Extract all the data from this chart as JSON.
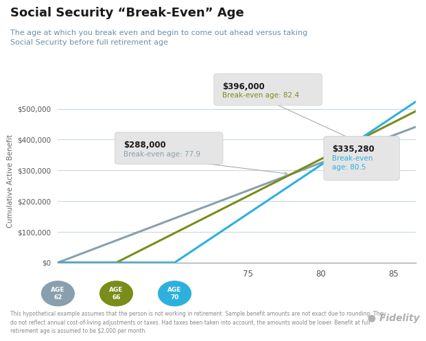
{
  "title": "Social Security “Break-Even” Age",
  "subtitle": "The age at which you break even and begin to come out ahead versus taking\nSocial Security before full retirement age",
  "footnote": "This hypothetical example assumes that the person is not working in retirement. Sample benefit amounts are not exact due to rounding. They\ndo not reflect annual cost-of-living adjustments or taxes. Had taxes been taken into account, the amounts would be lower. Benefit at full\nretirement age is assumed to be $2,000 per month.",
  "ylabel": "Cumulative Active Benefit",
  "lines": [
    {
      "start_age": 62,
      "monthly": 1500,
      "color": "#8a9fad",
      "label": "AGE\n62",
      "circle_color": "#8a9fad"
    },
    {
      "start_age": 66,
      "monthly": 2000,
      "color": "#7a8c1a",
      "label": "AGE\n66",
      "circle_color": "#7a8c1a"
    },
    {
      "start_age": 70,
      "monthly": 2640,
      "color": "#2db0de",
      "label": "AGE\n70",
      "circle_color": "#2db0de"
    }
  ],
  "circle_configs": [
    {
      "age": 62,
      "color": "#8a9fad",
      "text": "AGE\n62"
    },
    {
      "age": 66,
      "color": "#7a8c1a",
      "text": "AGE\n66"
    },
    {
      "age": 70,
      "color": "#2db0de",
      "text": "AGE\n70"
    }
  ],
  "xlim": [
    62,
    86.5
  ],
  "ylim": [
    0,
    530000
  ],
  "yticks": [
    0,
    100000,
    200000,
    300000,
    400000,
    500000
  ],
  "ytick_labels": [
    "$0",
    "$100,000",
    "$200,000",
    "$300,000",
    "$400,000",
    "$500,000"
  ],
  "xticks": [
    75,
    80,
    85
  ],
  "bg_color": "#ffffff",
  "title_color": "#1a1a1a",
  "subtitle_color": "#6b8fa5",
  "grid_color": "#c8d8e0",
  "axis_color": "#aaaaaa"
}
